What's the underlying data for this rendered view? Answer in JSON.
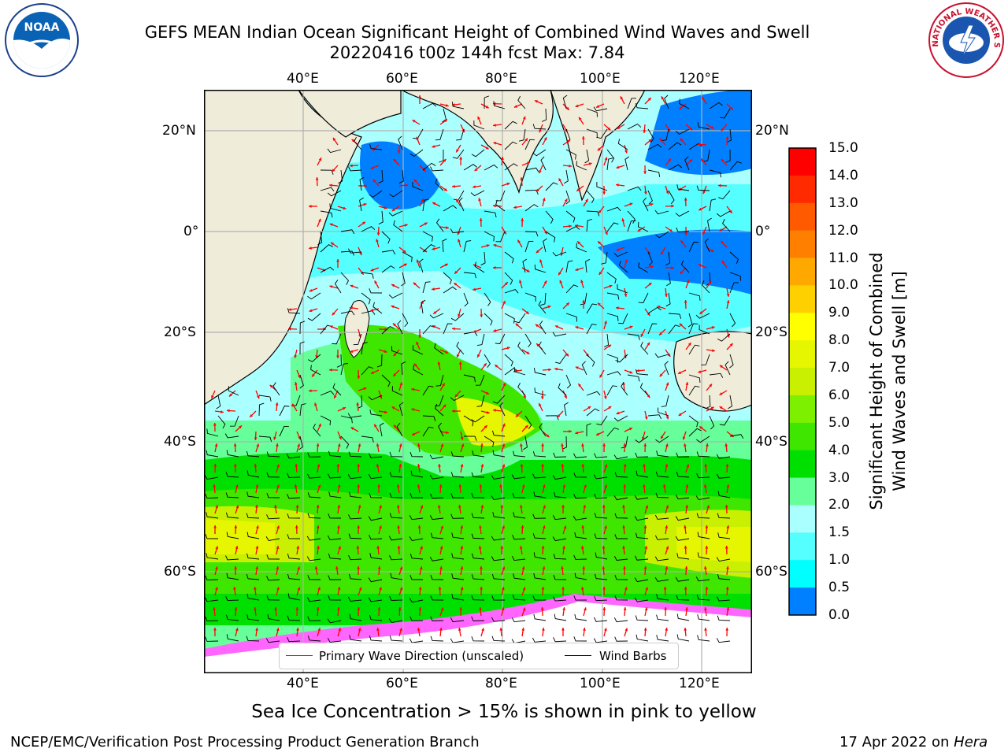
{
  "header": {
    "title_line1": "GEFS MEAN Indian Ocean Significant Height of Combined Wind Waves and Swell",
    "title_line2": "20220416 t00z 144h fcst   Max: 7.84"
  },
  "logos": {
    "noaa": {
      "text": "NOAA",
      "icon": "noaa-logo-icon"
    },
    "nws": {
      "text": "NATIONAL WEATHER SERVICE",
      "icon": "nws-logo-icon"
    }
  },
  "map": {
    "lon_ticks": [
      "40°E",
      "60°E",
      "80°E",
      "100°E",
      "120°E"
    ],
    "lat_ticks_left": [
      "20°N",
      "0°",
      "20°S",
      "40°S",
      "60°S"
    ],
    "lat_ticks_right": [
      "20°N",
      "0°",
      "20°S",
      "40°S",
      "60°S"
    ],
    "colors": {
      "land": "#efedda",
      "sea_ice": "#ff66ff",
      "arrows": "#ff0000",
      "barbs": "#000000",
      "grid": "#b0b0b0"
    }
  },
  "legend": {
    "wave_direction": "Primary Wave Direction (unscaled)",
    "wind_barbs": "Wind Barbs"
  },
  "colorbar": {
    "label_line1": "Significant Height of Combined",
    "label_line2": "Wind Waves and Swell [m]",
    "ticks": [
      "15.0",
      "14.0",
      "13.0",
      "12.0",
      "11.0",
      "10.0",
      "9.0",
      "8.0",
      "7.0",
      "6.0",
      "5.0",
      "4.0",
      "3.0",
      "2.0",
      "1.5",
      "1.0",
      "0.5",
      "0.0"
    ],
    "colors": [
      "#ff0000",
      "#ff2a00",
      "#ff5a00",
      "#ff8000",
      "#ffa800",
      "#ffd000",
      "#ffff00",
      "#e6f500",
      "#c8f000",
      "#7df000",
      "#3fe600",
      "#00e000",
      "#66ff99",
      "#aaffff",
      "#55ffff",
      "#00ffff",
      "#0080ff",
      "#0000ff"
    ]
  },
  "footer": {
    "note": "Sea Ice Concentration > 15% is shown in pink to yellow",
    "credit_left": "NCEP/EMC/Verification Post Processing Product Generation Branch",
    "credit_right_date": "17 Apr 2022 on ",
    "credit_right_host": "Hera"
  }
}
